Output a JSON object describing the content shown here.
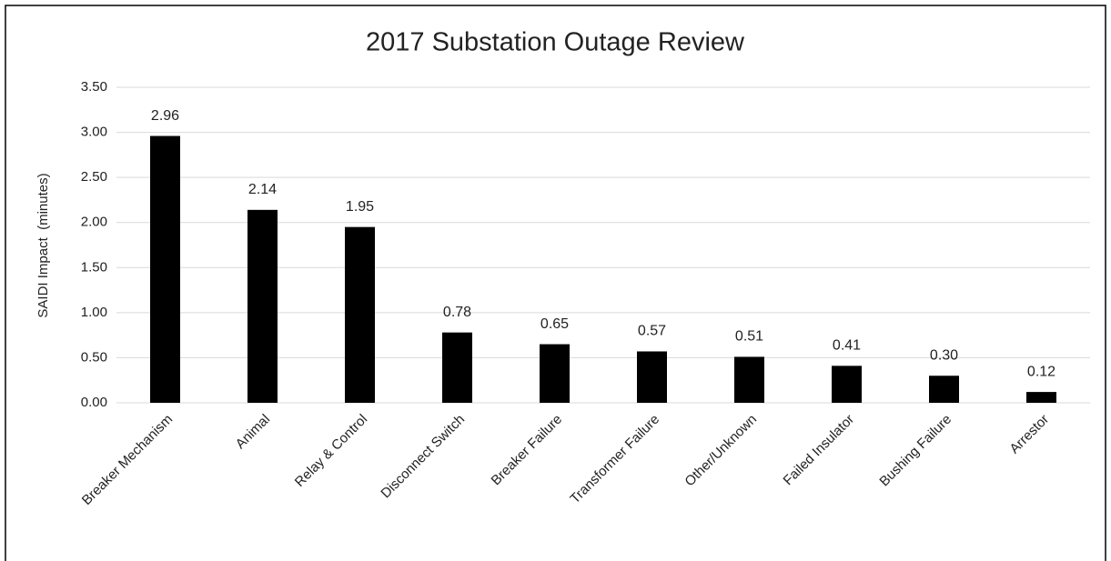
{
  "chart_data": {
    "type": "bar",
    "title": "2017 Substation Outage Review",
    "y_label": "SAIDI Impact  (minutes)",
    "categories": [
      "Breaker Mechanism",
      "Animal",
      "Relay & Control",
      "Disconnect Switch",
      "Breaker Failure",
      "Transformer Failure",
      "Other/Unknown",
      "Failed Insulator",
      "Bushing Failure",
      "Arrestor"
    ],
    "values": [
      2.96,
      2.14,
      1.95,
      0.78,
      0.65,
      0.57,
      0.51,
      0.41,
      0.3,
      0.12
    ],
    "value_labels": [
      "2.96",
      "2.14",
      "1.95",
      "0.78",
      "0.65",
      "0.57",
      "0.51",
      "0.41",
      "0.30",
      "0.12"
    ],
    "color": "#000000",
    "ylim": [
      0,
      3.5
    ],
    "yticks": [
      {
        "value": 0,
        "label": "0.00"
      },
      {
        "value": 0.5,
        "label": "0.50"
      },
      {
        "value": 1,
        "label": "1.00"
      },
      {
        "value": 1.5,
        "label": "1.50"
      },
      {
        "value": 2,
        "label": "2.00"
      },
      {
        "value": 2.5,
        "label": "2.50"
      },
      {
        "value": 3,
        "label": "3.00"
      },
      {
        "value": 3.5,
        "label": "3.50"
      }
    ],
    "grid": true
  }
}
